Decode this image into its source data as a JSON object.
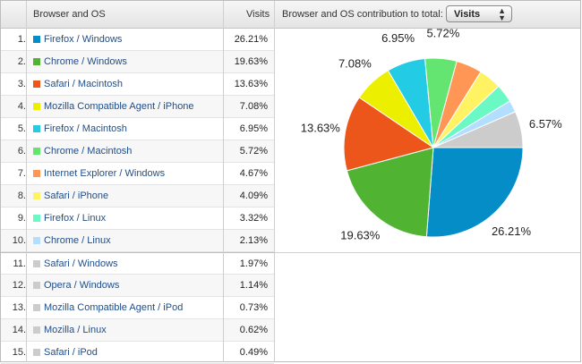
{
  "header": {
    "col_browser": "Browser and OS",
    "col_visits": "Visits",
    "contribution_label": "Browser and OS contribution to total:",
    "metric_select": "Visits"
  },
  "rows": [
    {
      "num": "1.",
      "label": "Firefox / Windows",
      "value": "26.21%",
      "color": "#058dc7"
    },
    {
      "num": "2.",
      "label": "Chrome / Windows",
      "value": "19.63%",
      "color": "#50b432"
    },
    {
      "num": "3.",
      "label": "Safari / Macintosh",
      "value": "13.63%",
      "color": "#ed561b"
    },
    {
      "num": "4.",
      "label": "Mozilla Compatible Agent / iPhone",
      "value": "7.08%",
      "color": "#edef00"
    },
    {
      "num": "5.",
      "label": "Firefox / Macintosh",
      "value": "6.95%",
      "color": "#24cbe5"
    },
    {
      "num": "6.",
      "label": "Chrome / Macintosh",
      "value": "5.72%",
      "color": "#64e572"
    },
    {
      "num": "7.",
      "label": "Internet Explorer / Windows",
      "value": "4.67%",
      "color": "#ff9655"
    },
    {
      "num": "8.",
      "label": "Safari / iPhone",
      "value": "4.09%",
      "color": "#fff263"
    },
    {
      "num": "9.",
      "label": "Firefox / Linux",
      "value": "3.32%",
      "color": "#6af9c4"
    },
    {
      "num": "10.",
      "label": "Chrome / Linux",
      "value": "2.13%",
      "color": "#b2deff"
    },
    {
      "num": "11.",
      "label": "Safari / Windows",
      "value": "1.97%",
      "color": "#cccccc"
    },
    {
      "num": "12.",
      "label": "Opera / Windows",
      "value": "1.14%",
      "color": "#cccccc"
    },
    {
      "num": "13.",
      "label": "Mozilla Compatible Agent / iPod",
      "value": "0.73%",
      "color": "#cccccc"
    },
    {
      "num": "14.",
      "label": "Mozilla / Linux",
      "value": "0.62%",
      "color": "#cccccc"
    },
    {
      "num": "15.",
      "label": "Safari / iPod",
      "value": "0.49%",
      "color": "#cccccc"
    }
  ],
  "chart_data": {
    "type": "pie",
    "slices": [
      {
        "value": 26.21,
        "color": "#058dc7",
        "label": "26.21%"
      },
      {
        "value": 19.63,
        "color": "#50b432",
        "label": "19.63%"
      },
      {
        "value": 13.63,
        "color": "#ed561b",
        "label": "13.63%"
      },
      {
        "value": 7.08,
        "color": "#edef00",
        "label": "7.08%"
      },
      {
        "value": 6.95,
        "color": "#24cbe5",
        "label": "6.95%"
      },
      {
        "value": 5.72,
        "color": "#64e572",
        "label": "5.72%"
      },
      {
        "value": 4.67,
        "color": "#ff9655",
        "label": ""
      },
      {
        "value": 4.09,
        "color": "#fff263",
        "label": ""
      },
      {
        "value": 3.32,
        "color": "#6af9c4",
        "label": ""
      },
      {
        "value": 2.13,
        "color": "#b2deff",
        "label": ""
      },
      {
        "value": 6.57,
        "color": "#cccccc",
        "label": "6.57%"
      }
    ]
  }
}
